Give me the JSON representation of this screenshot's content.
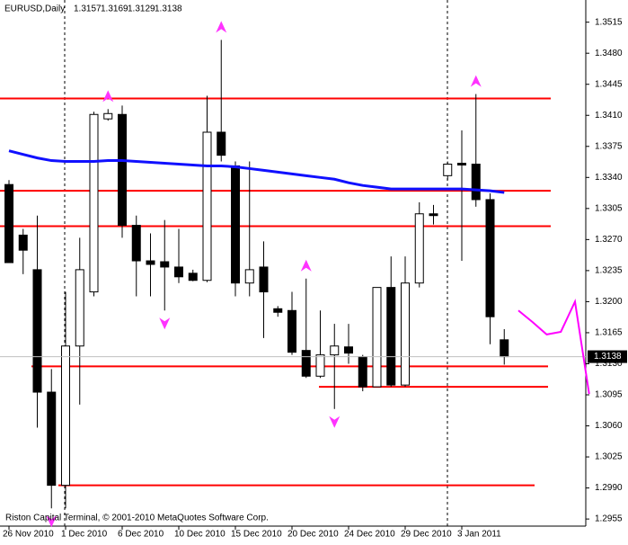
{
  "chart_data": {
    "type": "candlestick",
    "symbol": "EURUSD,Daily",
    "footer": "Riston Capital Terminal, © 2001-2010 MetaQuotes Software Corp.",
    "categories": [
      "26 Nov 2010",
      null,
      null,
      null,
      "1 Dec 2010",
      null,
      null,
      null,
      "6 Dec 2010",
      null,
      null,
      null,
      "10 Dec 2010",
      null,
      null,
      null,
      "15 Dec 2010",
      null,
      null,
      null,
      "20 Dec 2010",
      null,
      null,
      null,
      "24 Dec 2010",
      null,
      null,
      null,
      "29 Dec 2010",
      null,
      null,
      null,
      "3 Jan 2011",
      null,
      null,
      null
    ],
    "open": [
      1.3332,
      1.3275,
      1.3236,
      1.3098,
      1.2993,
      1.315,
      1.3211,
      1.3406,
      1.3411,
      1.3286,
      1.3246,
      1.3245,
      1.3239,
      1.3232,
      1.3224,
      1.3391,
      1.3353,
      1.3221,
      1.3239,
      1.3192,
      1.319,
      1.3145,
      1.3116,
      1.314,
      1.3149,
      1.3138,
      1.3104,
      1.3216,
      1.3106,
      1.3221,
      1.3299,
      1.3342,
      1.3356,
      1.3355,
      1.3315,
      1.3157
    ],
    "high": [
      1.3337,
      1.3282,
      1.3297,
      1.3124,
      1.3211,
      1.3272,
      1.3414,
      1.3417,
      1.3421,
      1.3297,
      1.3277,
      1.3292,
      1.3282,
      1.3236,
      1.3432,
      1.3495,
      1.3358,
      1.3358,
      1.3268,
      1.3195,
      1.3211,
      1.3226,
      1.319,
      1.3175,
      1.3175,
      1.314,
      1.3216,
      1.3251,
      1.3251,
      1.3312,
      1.3309,
      1.3358,
      1.3393,
      1.3434,
      1.3322,
      1.3169
    ],
    "low": [
      1.3244,
      1.3231,
      1.3058,
      1.2967,
      1.2967,
      1.3084,
      1.3206,
      1.3404,
      1.3272,
      1.3206,
      1.3206,
      1.319,
      1.3221,
      1.3223,
      1.3222,
      1.3358,
      1.3206,
      1.3206,
      1.3159,
      1.3183,
      1.314,
      1.3114,
      1.3114,
      1.3079,
      1.313,
      1.3099,
      1.3104,
      1.3104,
      1.3104,
      1.3216,
      1.3287,
      1.3337,
      1.3246,
      1.3307,
      1.3152,
      1.3129
    ],
    "close": [
      1.3244,
      1.3258,
      1.3098,
      1.2993,
      1.315,
      1.3236,
      1.3411,
      1.3412,
      1.3286,
      1.3246,
      1.3242,
      1.3239,
      1.3228,
      1.3224,
      1.3391,
      1.3365,
      1.3221,
      1.3236,
      1.3211,
      1.3188,
      1.3143,
      1.3116,
      1.314,
      1.315,
      1.3142,
      1.3104,
      1.3216,
      1.3106,
      1.3221,
      1.3299,
      1.3297,
      1.3355,
      1.3354,
      1.3315,
      1.3183,
      1.3138
    ],
    "ma": {
      "color": "#1010ff",
      "values": [
        1.337,
        1.3366,
        1.3362,
        1.3359,
        1.3358,
        1.3358,
        1.3358,
        1.3359,
        1.3359,
        1.3358,
        1.3357,
        1.3356,
        1.3355,
        1.3354,
        1.3353,
        1.3353,
        1.3352,
        1.335,
        1.3348,
        1.3346,
        1.3344,
        1.3342,
        1.334,
        1.3338,
        1.3334,
        1.3331,
        1.3329,
        1.3327,
        1.3327,
        1.3327,
        1.3327,
        1.3327,
        1.3327,
        1.3326,
        1.3325,
        1.3323
      ]
    },
    "levels": {
      "color": "#ff0000",
      "values": [
        1.3429,
        1.3325,
        1.3285,
        1.3127,
        1.3104,
        1.2993
      ]
    },
    "fractals": {
      "color": "#ff33ff",
      "up": [
        null,
        null,
        null,
        null,
        null,
        null,
        null,
        1.3417,
        null,
        null,
        null,
        null,
        null,
        null,
        null,
        1.3495,
        null,
        null,
        null,
        null,
        null,
        1.3226,
        null,
        null,
        null,
        null,
        null,
        null,
        null,
        null,
        null,
        null,
        null,
        1.3434,
        null,
        null
      ],
      "down": [
        null,
        null,
        null,
        1.2967,
        null,
        null,
        null,
        null,
        null,
        null,
        null,
        1.319,
        null,
        null,
        null,
        null,
        null,
        null,
        null,
        null,
        null,
        null,
        null,
        1.3079,
        null,
        null,
        null,
        null,
        null,
        null,
        null,
        null,
        null,
        null,
        null,
        null
      ]
    },
    "forecast": {
      "color": "#ff00ff",
      "values": [
        1.319,
        1.3177,
        1.3163,
        1.3166,
        1.32,
        1.3096
      ]
    },
    "ylim": [
      1.2947,
      1.354
    ],
    "yticks": [
      1.3515,
      {
        "value": 1.348,
        "label": "1.3480"
      },
      1.3445,
      {
        "value": 1.341,
        "label": "1.3410"
      },
      1.3375,
      {
        "value": 1.334,
        "label": "1.3340"
      },
      1.3305,
      {
        "value": 1.327,
        "label": "1.3270"
      },
      1.3235,
      {
        "value": 1.32,
        "label": "1.3200"
      },
      1.3165,
      {
        "value": 1.313,
        "label": "1.3130"
      },
      1.3095,
      {
        "value": 1.306,
        "label": "1.3060"
      },
      1.3025,
      {
        "value": 1.299,
        "label": "1.2990"
      },
      1.2955
    ]
  }
}
